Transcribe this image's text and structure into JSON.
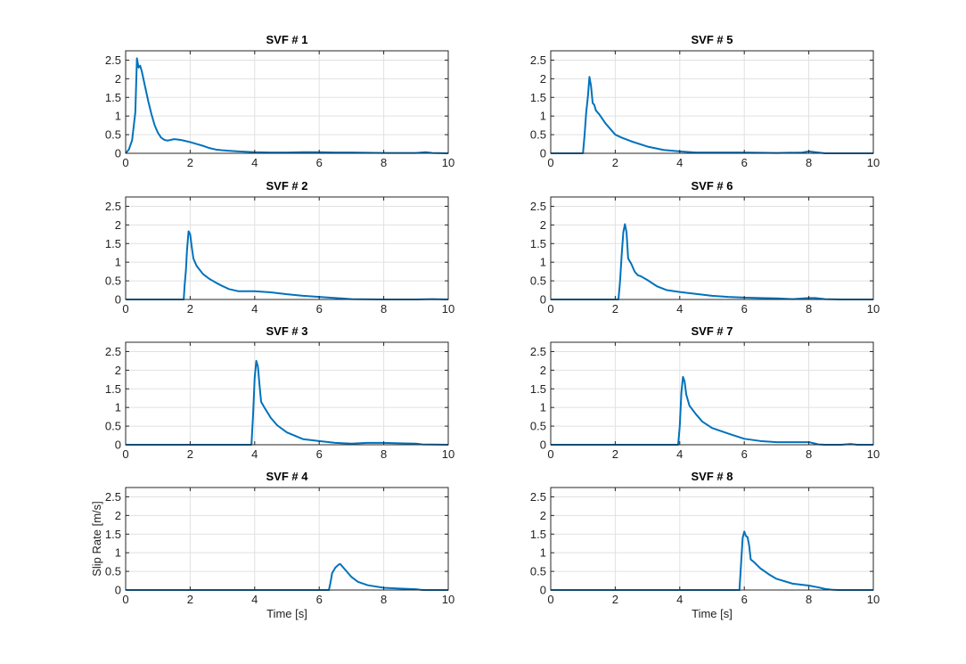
{
  "chart_data": [
    {
      "type": "line",
      "title": "SVF # 1",
      "xlabel": "",
      "ylabel": "",
      "xlim": [
        0,
        10
      ],
      "ylim": [
        0,
        2.75
      ],
      "xticks": [
        0,
        2,
        4,
        6,
        8,
        10
      ],
      "yticks": [
        0,
        0.5,
        1,
        1.5,
        2,
        2.5
      ],
      "grid": true,
      "color": "#0072BD",
      "series": [
        {
          "x": [
            0,
            0.1,
            0.2,
            0.3,
            0.35,
            0.4,
            0.45,
            0.5,
            0.6,
            0.7,
            0.8,
            0.9,
            1.0,
            1.1,
            1.2,
            1.3,
            1.4,
            1.5,
            1.6,
            1.7,
            1.8,
            2.0,
            2.2,
            2.4,
            2.6,
            2.8,
            3.0,
            3.5,
            4.0,
            4.5,
            5.0,
            5.5,
            6.0,
            6.5,
            7.0,
            8.0,
            9.0,
            9.3,
            9.5,
            10
          ],
          "y": [
            0,
            0.1,
            0.35,
            1.1,
            2.55,
            2.3,
            2.35,
            2.2,
            1.8,
            1.4,
            1.05,
            0.75,
            0.55,
            0.42,
            0.36,
            0.34,
            0.36,
            0.38,
            0.37,
            0.36,
            0.34,
            0.3,
            0.25,
            0.2,
            0.14,
            0.1,
            0.08,
            0.05,
            0.03,
            0.02,
            0.02,
            0.03,
            0.03,
            0.02,
            0.02,
            0.01,
            0.01,
            0.03,
            0.01,
            0
          ]
        }
      ]
    },
    {
      "type": "line",
      "title": "SVF # 2",
      "xlabel": "",
      "ylabel": "",
      "xlim": [
        0,
        10
      ],
      "ylim": [
        0,
        2.75
      ],
      "xticks": [
        0,
        2,
        4,
        6,
        8,
        10
      ],
      "yticks": [
        0,
        0.5,
        1,
        1.5,
        2,
        2.5
      ],
      "grid": true,
      "color": "#0072BD",
      "series": [
        {
          "x": [
            0,
            1.8,
            1.83,
            1.87,
            1.9,
            1.95,
            2.0,
            2.05,
            2.1,
            2.2,
            2.4,
            2.6,
            2.8,
            3.0,
            3.2,
            3.5,
            4.0,
            4.5,
            5.0,
            5.5,
            6.0,
            6.5,
            7.0,
            8.0,
            9.0,
            9.5,
            10
          ],
          "y": [
            0,
            0,
            0.4,
            0.8,
            1.3,
            1.83,
            1.75,
            1.4,
            1.1,
            0.9,
            0.68,
            0.55,
            0.45,
            0.36,
            0.28,
            0.22,
            0.22,
            0.19,
            0.14,
            0.1,
            0.07,
            0.04,
            0.01,
            0,
            0,
            0.01,
            0
          ]
        }
      ]
    },
    {
      "type": "line",
      "title": "SVF # 3",
      "xlabel": "",
      "ylabel": "",
      "xlim": [
        0,
        10
      ],
      "ylim": [
        0,
        2.75
      ],
      "xticks": [
        0,
        2,
        4,
        6,
        8,
        10
      ],
      "yticks": [
        0,
        0.5,
        1,
        1.5,
        2,
        2.5
      ],
      "grid": true,
      "color": "#0072BD",
      "series": [
        {
          "x": [
            0,
            3.9,
            3.95,
            4.0,
            4.05,
            4.1,
            4.15,
            4.2,
            4.3,
            4.5,
            4.7,
            5.0,
            5.5,
            6.0,
            6.5,
            7.0,
            7.5,
            8.0,
            8.5,
            9.0,
            9.2,
            10
          ],
          "y": [
            0,
            0,
            0.8,
            1.8,
            2.25,
            2.1,
            1.6,
            1.15,
            1.0,
            0.72,
            0.52,
            0.33,
            0.15,
            0.1,
            0.05,
            0.03,
            0.05,
            0.05,
            0.04,
            0.03,
            0.01,
            0
          ]
        }
      ]
    },
    {
      "type": "line",
      "title": "SVF # 4",
      "xlabel": "Time [s]",
      "ylabel": "Slip Rate [m/s]",
      "xlim": [
        0,
        10
      ],
      "ylim": [
        0,
        2.75
      ],
      "xticks": [
        0,
        2,
        4,
        6,
        8,
        10
      ],
      "yticks": [
        0,
        0.5,
        1,
        1.5,
        2,
        2.5
      ],
      "grid": true,
      "color": "#0072BD",
      "series": [
        {
          "x": [
            0,
            6.3,
            6.35,
            6.4,
            6.5,
            6.6,
            6.65,
            6.7,
            6.8,
            7.0,
            7.2,
            7.5,
            8.0,
            8.5,
            9.0,
            9.2,
            10
          ],
          "y": [
            0,
            0,
            0.2,
            0.45,
            0.6,
            0.68,
            0.7,
            0.65,
            0.55,
            0.35,
            0.22,
            0.13,
            0.06,
            0.04,
            0.02,
            0,
            0
          ]
        }
      ]
    },
    {
      "type": "line",
      "title": "SVF # 5",
      "xlabel": "",
      "ylabel": "",
      "xlim": [
        0,
        10
      ],
      "ylim": [
        0,
        2.75
      ],
      "xticks": [
        0,
        2,
        4,
        6,
        8,
        10
      ],
      "yticks": [
        0,
        0.5,
        1,
        1.5,
        2,
        2.5
      ],
      "grid": true,
      "color": "#0072BD",
      "series": [
        {
          "x": [
            0,
            1.0,
            1.05,
            1.1,
            1.15,
            1.2,
            1.25,
            1.3,
            1.35,
            1.4,
            1.5,
            1.7,
            2.0,
            2.2,
            2.5,
            3.0,
            3.5,
            4.0,
            4.5,
            5.0,
            6.0,
            7.0,
            7.8,
            8.0,
            8.2,
            8.5,
            10
          ],
          "y": [
            0,
            0,
            0.5,
            1.1,
            1.5,
            2.05,
            1.8,
            1.35,
            1.3,
            1.15,
            1.05,
            0.8,
            0.5,
            0.42,
            0.32,
            0.18,
            0.09,
            0.05,
            0.02,
            0.02,
            0.02,
            0.01,
            0.02,
            0.05,
            0.03,
            0,
            0
          ]
        }
      ]
    },
    {
      "type": "line",
      "title": "SVF # 6",
      "xlabel": "",
      "ylabel": "",
      "xlim": [
        0,
        10
      ],
      "ylim": [
        0,
        2.75
      ],
      "xticks": [
        0,
        2,
        4,
        6,
        8,
        10
      ],
      "yticks": [
        0,
        0.5,
        1,
        1.5,
        2,
        2.5
      ],
      "grid": true,
      "color": "#0072BD",
      "series": [
        {
          "x": [
            0,
            2.1,
            2.15,
            2.2,
            2.25,
            2.3,
            2.35,
            2.4,
            2.5,
            2.6,
            2.7,
            2.8,
            3.0,
            3.3,
            3.6,
            4.0,
            4.5,
            5.0,
            5.5,
            6.0,
            6.5,
            7.0,
            7.5,
            8.0,
            8.2,
            8.5,
            9.0,
            10
          ],
          "y": [
            0,
            0,
            0.5,
            1.2,
            1.8,
            2.02,
            1.8,
            1.1,
            0.95,
            0.75,
            0.65,
            0.62,
            0.52,
            0.35,
            0.25,
            0.2,
            0.15,
            0.1,
            0.07,
            0.05,
            0.04,
            0.03,
            0.01,
            0.04,
            0.04,
            0.01,
            0,
            0
          ]
        }
      ]
    },
    {
      "type": "line",
      "title": "SVF # 7",
      "xlabel": "",
      "ylabel": "",
      "xlim": [
        0,
        10
      ],
      "ylim": [
        0,
        2.75
      ],
      "xticks": [
        0,
        2,
        4,
        6,
        8,
        10
      ],
      "yticks": [
        0,
        0.5,
        1,
        1.5,
        2,
        2.5
      ],
      "grid": true,
      "color": "#0072BD",
      "series": [
        {
          "x": [
            0,
            3.95,
            4.0,
            4.05,
            4.1,
            4.15,
            4.2,
            4.3,
            4.5,
            4.7,
            5.0,
            5.5,
            6.0,
            6.5,
            7.0,
            7.5,
            8.0,
            8.1,
            8.3,
            8.5,
            9.0,
            9.3,
            9.5,
            10
          ],
          "y": [
            0,
            0,
            0.5,
            1.4,
            1.82,
            1.7,
            1.35,
            1.05,
            0.82,
            0.62,
            0.45,
            0.3,
            0.16,
            0.1,
            0.07,
            0.07,
            0.07,
            0.05,
            0.01,
            0,
            0,
            0.02,
            0,
            0
          ]
        }
      ]
    },
    {
      "type": "line",
      "title": "SVF # 8",
      "xlabel": "Time [s]",
      "ylabel": "",
      "xlim": [
        0,
        10
      ],
      "ylim": [
        0,
        2.75
      ],
      "xticks": [
        0,
        2,
        4,
        6,
        8,
        10
      ],
      "yticks": [
        0,
        0.5,
        1,
        1.5,
        2,
        2.5
      ],
      "grid": true,
      "color": "#0072BD",
      "series": [
        {
          "x": [
            0,
            5.85,
            5.9,
            5.95,
            6.0,
            6.05,
            6.1,
            6.15,
            6.2,
            6.3,
            6.5,
            6.8,
            7.0,
            7.5,
            8.0,
            8.3,
            8.5,
            8.7,
            8.9,
            10
          ],
          "y": [
            0,
            0,
            0.7,
            1.4,
            1.57,
            1.45,
            1.42,
            1.2,
            0.82,
            0.75,
            0.58,
            0.4,
            0.3,
            0.17,
            0.12,
            0.07,
            0.03,
            0.01,
            0,
            0
          ]
        }
      ]
    }
  ]
}
